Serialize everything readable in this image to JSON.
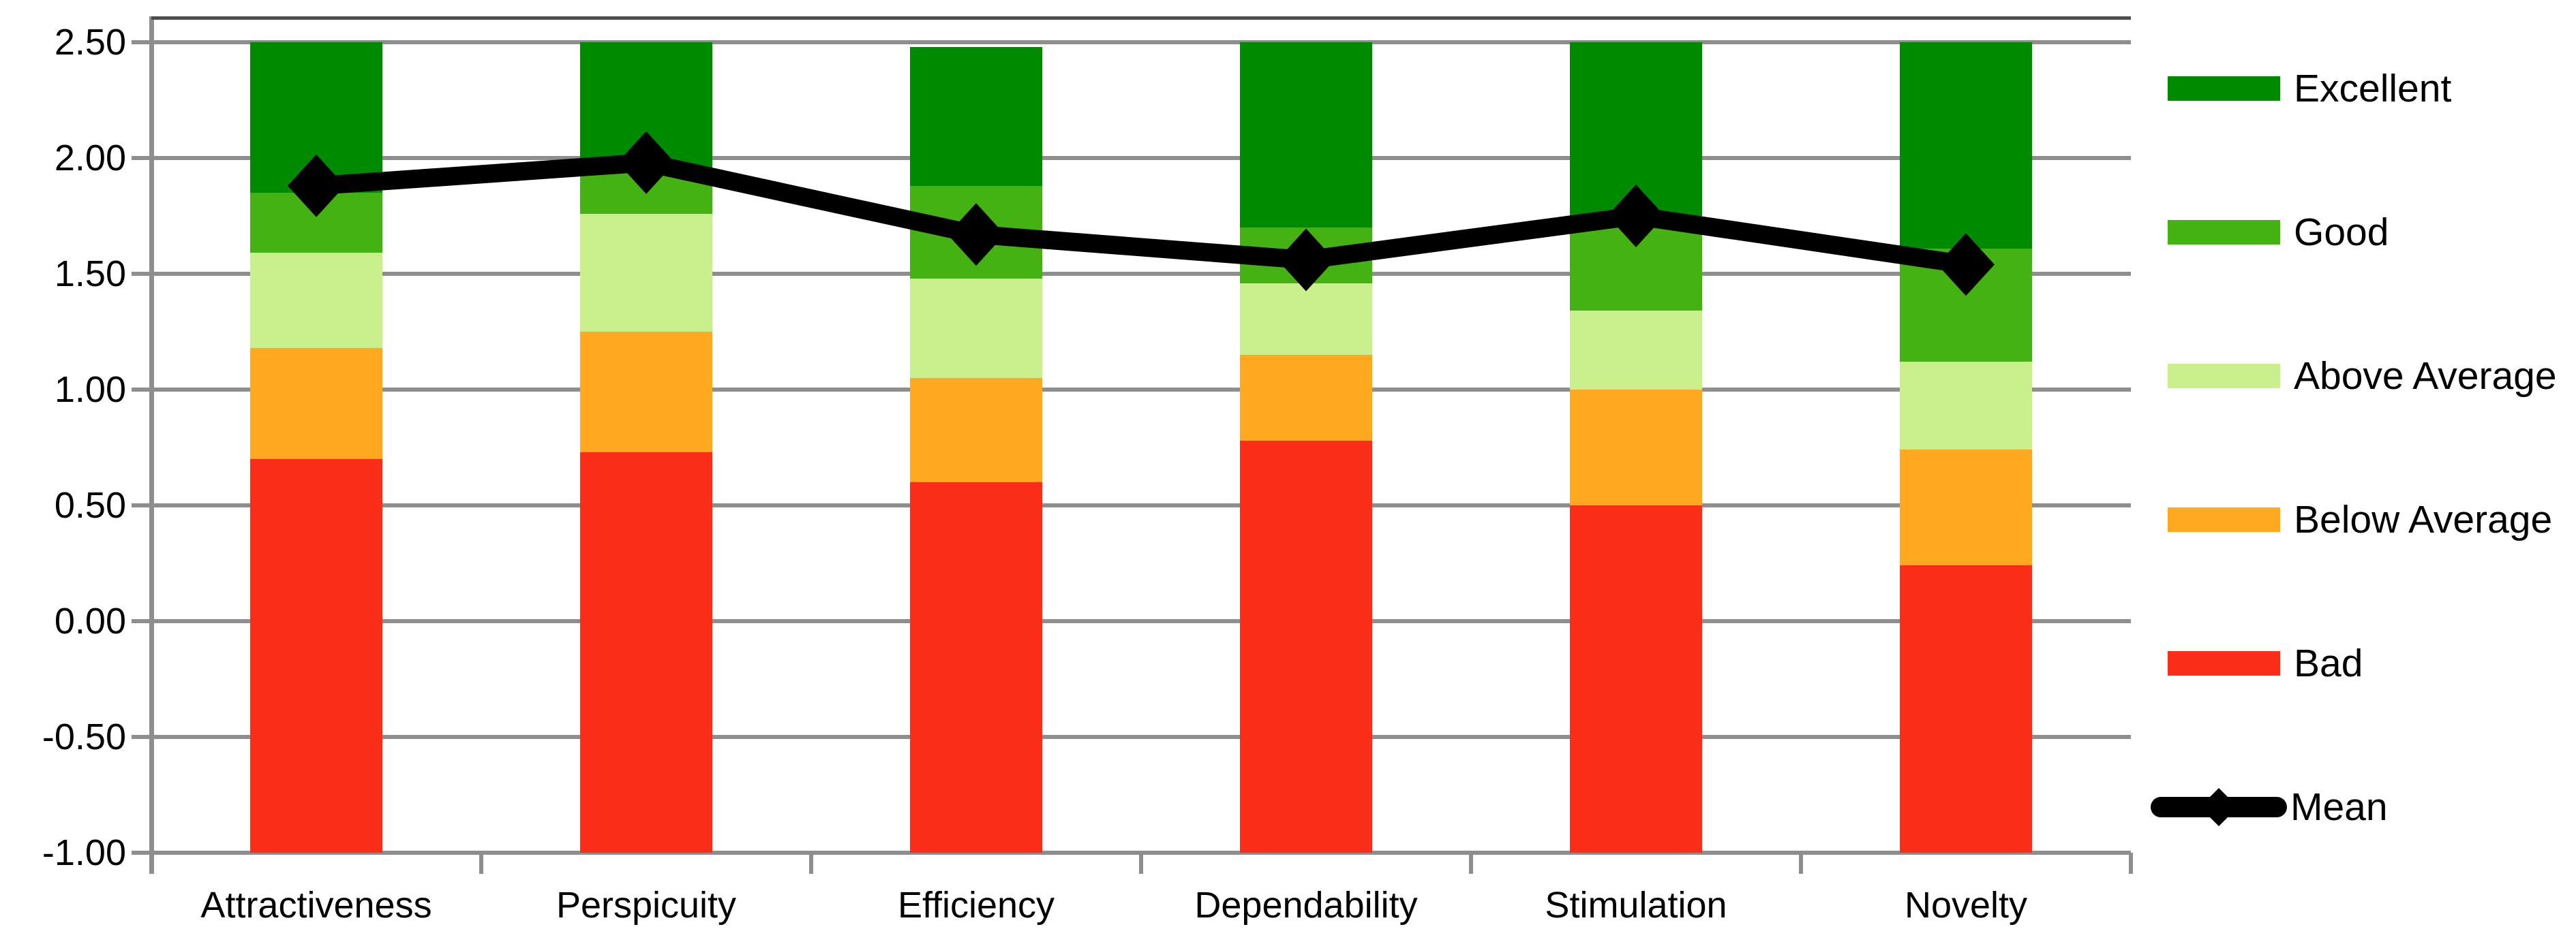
{
  "chart_data": {
    "type": "bar",
    "subtype": "stacked-bars-with-line-overlay",
    "title": "",
    "categories": [
      "Attractiveness",
      "Perspicuity",
      "Efficiency",
      "Dependability",
      "Stimulation",
      "Novelty"
    ],
    "ylim": [
      -1.0,
      2.5
    ],
    "ytick_step": 0.5,
    "ytick_values": [
      2.5,
      2.0,
      1.5,
      1.0,
      0.5,
      0.0,
      -0.5,
      -1.0
    ],
    "ytick_labels": [
      "2.50",
      "2.00",
      "1.50",
      "1.00",
      "0.50",
      "0.00",
      "-0.50",
      "-1.00"
    ],
    "grid": true,
    "stack_base": -1.0,
    "series": [
      {
        "name": "Bad",
        "color": "#FA2D19",
        "tops": [
          0.7,
          0.73,
          0.6,
          0.78,
          0.5,
          0.24
        ]
      },
      {
        "name": "Below Average",
        "color": "#FFA820",
        "tops": [
          1.18,
          1.25,
          1.05,
          1.15,
          1.0,
          0.74
        ]
      },
      {
        "name": "Above Average",
        "color": "#C9F08C",
        "tops": [
          1.59,
          1.76,
          1.48,
          1.46,
          1.34,
          1.12
        ]
      },
      {
        "name": "Good",
        "color": "#44B213",
        "tops": [
          1.85,
          1.95,
          1.88,
          1.7,
          1.72,
          1.61
        ]
      },
      {
        "name": "Excellent",
        "color": "#008A00",
        "tops": [
          2.5,
          2.5,
          2.48,
          2.5,
          2.5,
          2.5
        ]
      }
    ],
    "line_series": {
      "name": "Mean",
      "color": "#000000",
      "marker": "diamond",
      "values": [
        1.88,
        1.98,
        1.67,
        1.56,
        1.75,
        1.54
      ]
    },
    "legend_position": "right"
  },
  "legend": {
    "items": [
      {
        "label": "Excellent",
        "color": "#008A00",
        "glyph": "swatch"
      },
      {
        "label": "Good",
        "color": "#44B213",
        "glyph": "swatch"
      },
      {
        "label": "Above Average",
        "color": "#C9F08C",
        "glyph": "swatch"
      },
      {
        "label": "Below Average",
        "color": "#FFA820",
        "glyph": "swatch"
      },
      {
        "label": "Bad",
        "color": "#FA2D19",
        "glyph": "swatch"
      },
      {
        "label": "Mean",
        "color": "#000000",
        "glyph": "line-diamond"
      }
    ]
  },
  "colors": {
    "background": "#FFFFFF",
    "gridline": "#8E8E8E",
    "axis": "#8E8E8E",
    "plot_top_border": "#4D4D4D",
    "text": "#000000"
  }
}
